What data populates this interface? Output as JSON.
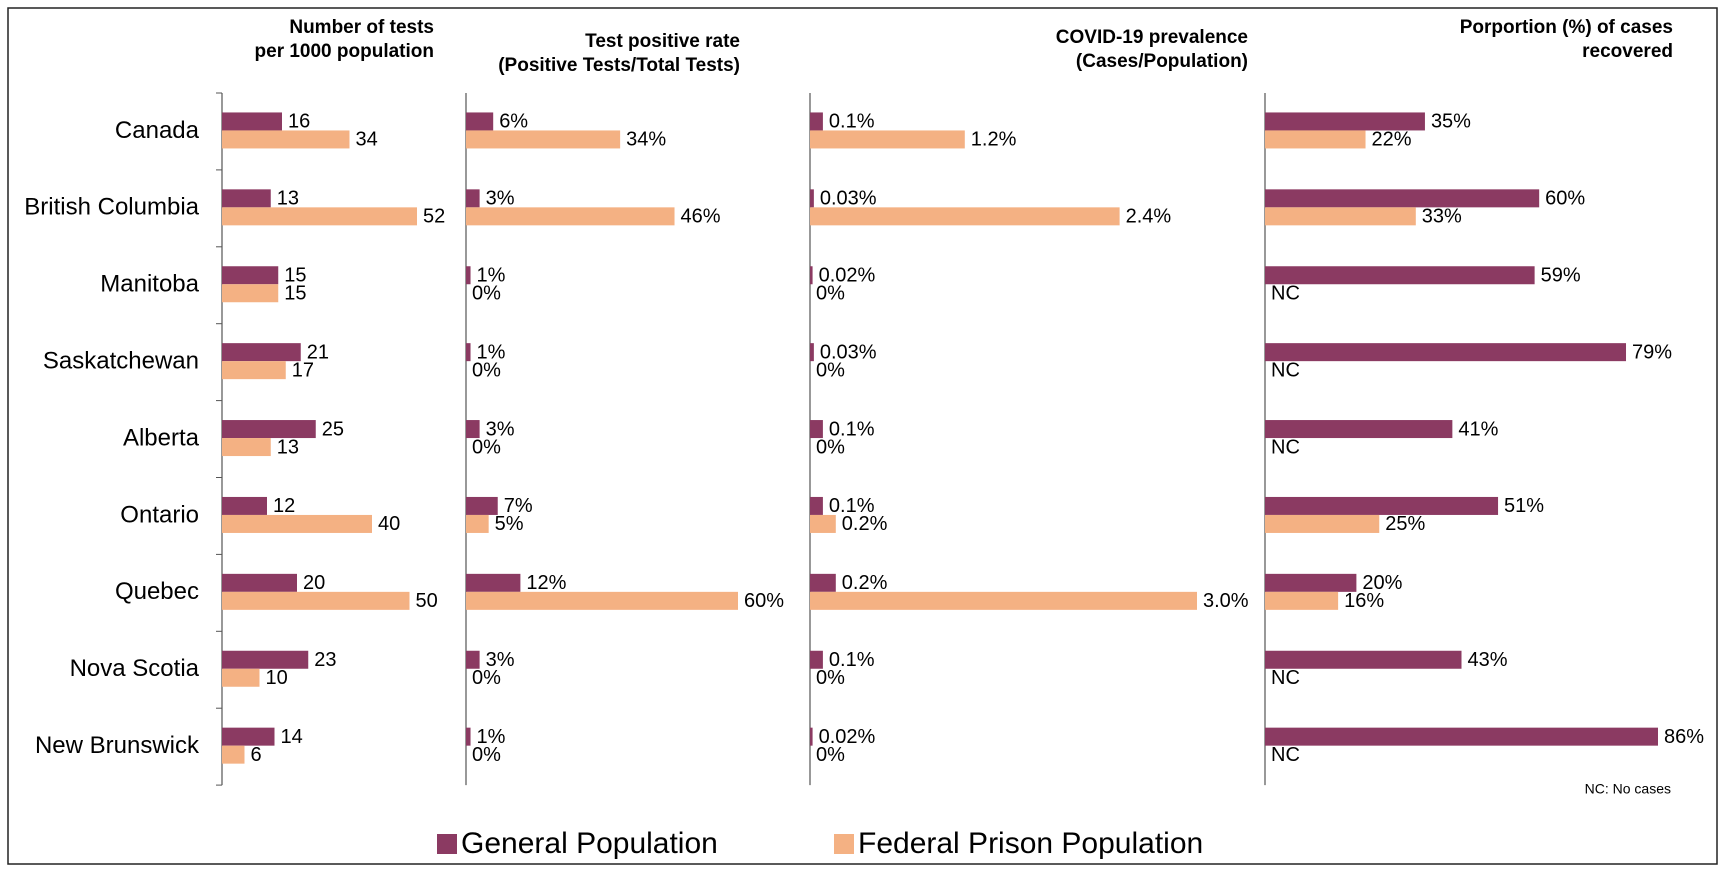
{
  "chart_data": [
    {
      "type": "bar",
      "orientation": "horizontal",
      "title": "Number of tests\nper 1000 population",
      "categories": [
        "Canada",
        "British Columbia",
        "Manitoba",
        "Saskatchewan",
        "Alberta",
        "Ontario",
        "Quebec",
        "Nova Scotia",
        "New Brunswick"
      ],
      "series": [
        {
          "name": "General Population",
          "color": "#8b3a62",
          "values": [
            16,
            13,
            15,
            21,
            25,
            12,
            20,
            23,
            14
          ]
        },
        {
          "name": "Federal Prison Population",
          "color": "#f4b183",
          "values": [
            34,
            52,
            15,
            17,
            13,
            40,
            50,
            10,
            6
          ]
        }
      ]
    },
    {
      "type": "bar",
      "orientation": "horizontal",
      "title": "Test positive rate\n(Positive Tests/Total Tests)",
      "series": [
        {
          "color": "#8b3a62",
          "values": [
            6,
            3,
            1,
            1,
            3,
            7,
            12,
            3,
            1
          ],
          "value_labels": [
            "6%",
            "3%",
            "1%",
            "1%",
            "3%",
            "7%",
            "12%",
            "3%",
            "1%"
          ]
        },
        {
          "color": "#f4b183",
          "values": [
            34,
            46,
            0,
            0,
            0,
            5,
            60,
            0,
            0
          ],
          "value_labels": [
            "34%",
            "46%",
            "0%",
            "0%",
            "0%",
            "5%",
            "60%",
            "0%",
            "0%"
          ]
        }
      ]
    },
    {
      "type": "bar",
      "orientation": "horizontal",
      "title": "COVID-19 prevalence\n(Cases/Population)",
      "series": [
        {
          "color": "#8b3a62",
          "values": [
            0.1,
            0.03,
            0.02,
            0.03,
            0.1,
            0.1,
            0.2,
            0.1,
            0.02
          ],
          "value_labels": [
            "0.1%",
            "0.03%",
            "0.02%",
            "0.03%",
            "0.1%",
            "0.1%",
            "0.2%",
            "0.1%",
            "0.02%"
          ]
        },
        {
          "color": "#f4b183",
          "values": [
            1.2,
            2.4,
            0,
            0,
            0,
            0.2,
            3.0,
            0,
            0
          ],
          "value_labels": [
            "1.2%",
            "2.4%",
            "0%",
            "0%",
            "0%",
            "0.2%",
            "3.0%",
            "0%",
            "0%"
          ]
        }
      ]
    },
    {
      "type": "bar",
      "orientation": "horizontal",
      "title": "Porportion (%) of cases\nrecovered",
      "annotation": "NC: No cases",
      "series": [
        {
          "color": "#8b3a62",
          "values": [
            35,
            60,
            59,
            79,
            41,
            51,
            20,
            43,
            86
          ],
          "value_labels": [
            "35%",
            "60%",
            "59%",
            "79%",
            "41%",
            "51%",
            "20%",
            "43%",
            "86%"
          ]
        },
        {
          "color": "#f4b183",
          "values": [
            22,
            33,
            null,
            null,
            null,
            25,
            16,
            null,
            null
          ],
          "value_labels": [
            "22%",
            "33%",
            "NC",
            "NC",
            "NC",
            "25%",
            "16%",
            "NC",
            "NC"
          ]
        }
      ]
    }
  ]
}
